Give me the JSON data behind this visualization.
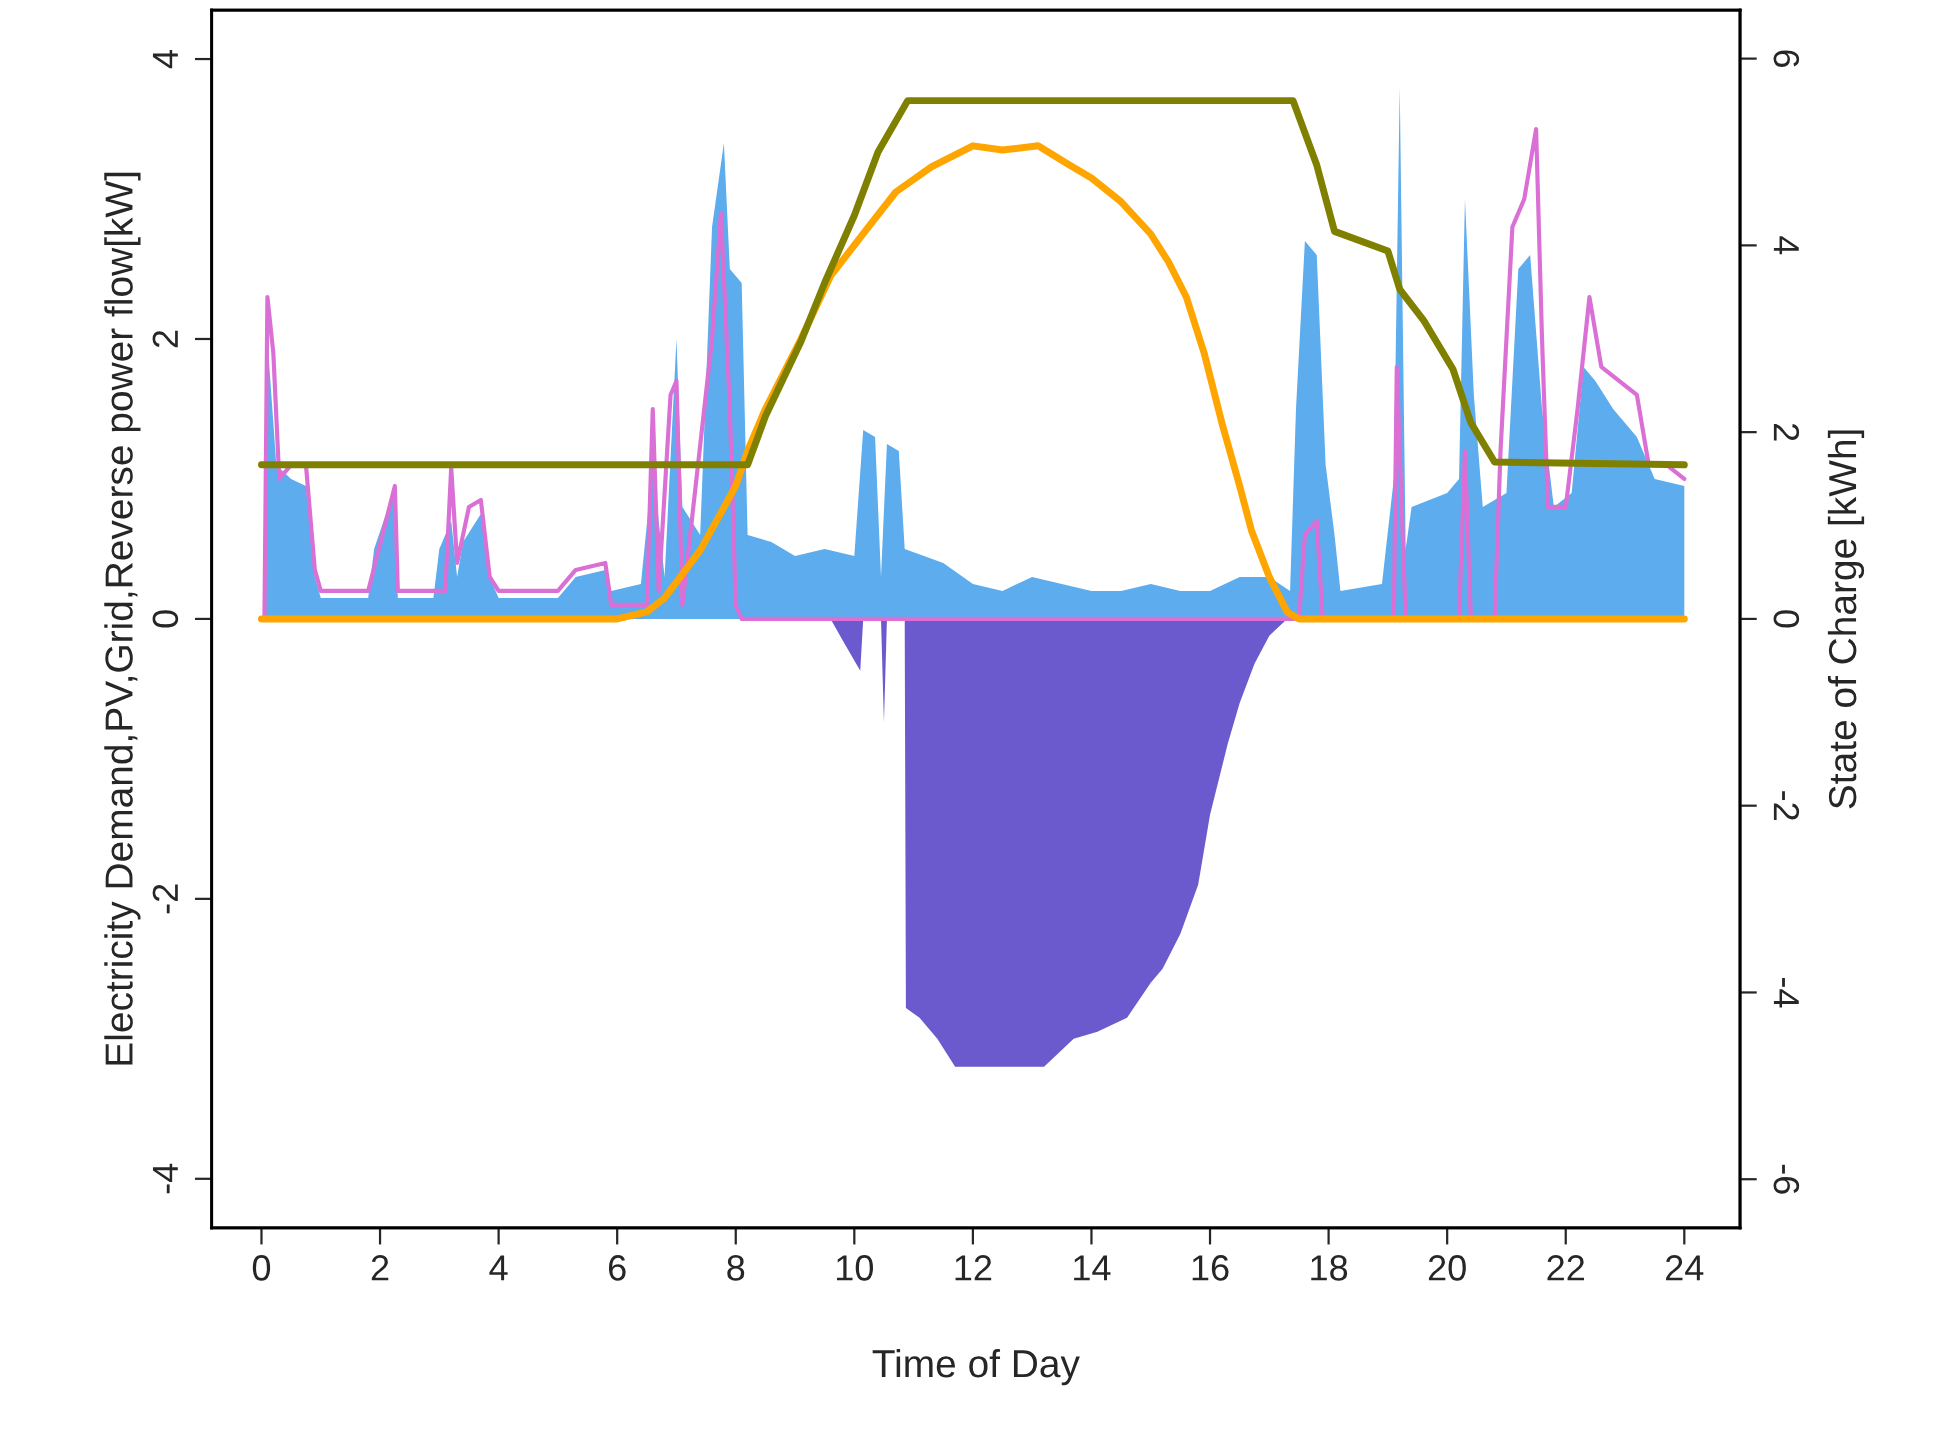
{
  "chart_data": {
    "type": "area",
    "xlabel": "Time of Day",
    "ylabel": "Electricity Demand,PV,Grid,Reverse power flow[kW]",
    "y2label": "State of Charge [kWh]",
    "xlim": [
      -0.84,
      24.94
    ],
    "xticks": [
      0,
      2,
      4,
      6,
      8,
      10,
      12,
      14,
      16,
      18,
      20,
      22,
      24
    ],
    "ylim": [
      -4.35,
      4.35
    ],
    "yticks": [
      -4,
      -2,
      0,
      2,
      4
    ],
    "y2lim": [
      -6.52,
      6.52
    ],
    "y2ticks": [
      -6,
      -4,
      -2,
      0,
      2,
      4,
      6
    ],
    "grid": false,
    "legend": false,
    "series": [
      {
        "color": "#5cacee",
        "x": [
          0.05,
          0.1,
          0.25,
          0.5,
          0.75,
          0.9,
          1.0,
          1.5,
          1.8,
          1.9,
          2.1,
          2.25,
          2.3,
          2.9,
          3.0,
          3.2,
          3.3,
          3.4,
          3.7,
          3.85,
          4.0,
          5.0,
          5.3,
          5.8,
          5.9,
          6.4,
          6.6,
          6.8,
          7.0,
          7.1,
          7.4,
          7.6,
          7.8,
          7.9,
          8.1,
          8.2,
          8.6,
          9.0,
          9.5,
          10.0,
          10.15,
          10.35,
          10.45,
          10.55,
          10.75,
          10.85,
          11.5,
          12.0,
          12.5,
          13.0,
          13.5,
          14.0,
          14.5,
          15.0,
          15.5,
          16.0,
          16.5,
          17.0,
          17.35,
          17.45,
          17.6,
          17.8,
          17.95,
          18.1,
          18.2,
          18.9,
          19.1,
          19.2,
          19.3,
          19.4,
          20.0,
          20.2,
          20.3,
          20.45,
          20.6,
          21.0,
          21.2,
          21.4,
          21.6,
          21.8,
          22.1,
          22.3,
          22.5,
          22.8,
          23.2,
          23.5,
          24.0
        ],
        "values": [
          0,
          2.0,
          1.1,
          1.0,
          0.95,
          0.3,
          0.15,
          0.15,
          0.15,
          0.5,
          0.75,
          0.9,
          0.15,
          0.15,
          0.5,
          0.7,
          0.3,
          0.55,
          0.75,
          0.3,
          0.15,
          0.15,
          0.3,
          0.35,
          0.2,
          0.25,
          1.1,
          0.3,
          2.0,
          0.8,
          0.6,
          2.8,
          3.4,
          2.5,
          2.4,
          0.6,
          0.55,
          0.45,
          0.5,
          0.45,
          1.35,
          1.3,
          0.3,
          1.25,
          1.2,
          0.5,
          0.4,
          0.25,
          0.2,
          0.3,
          0.25,
          0.2,
          0.2,
          0.25,
          0.2,
          0.2,
          0.3,
          0.3,
          0.2,
          1.5,
          2.7,
          2.6,
          1.1,
          0.6,
          0.2,
          0.25,
          1.0,
          3.8,
          0.5,
          0.8,
          0.9,
          1.0,
          3.0,
          1.6,
          0.8,
          0.9,
          2.5,
          2.6,
          1.5,
          0.8,
          0.9,
          1.8,
          1.7,
          1.5,
          1.3,
          1.0,
          0.95
        ]
      },
      {
        "type": "line",
        "color": "#da70d6",
        "x": [
          0.05,
          0.1,
          0.2,
          0.3,
          0.5,
          0.75,
          0.9,
          1.0,
          1.8,
          2.25,
          2.3,
          3.1,
          3.2,
          3.3,
          3.5,
          3.7,
          3.85,
          4.0,
          5.0,
          5.3,
          5.8,
          5.9,
          6.5,
          6.6,
          6.7,
          6.9,
          7.0,
          7.1,
          7.6,
          7.75,
          7.9,
          8.0,
          8.1,
          17.5,
          17.6,
          17.8,
          17.9,
          19.1,
          19.15,
          19.3,
          20.2,
          20.3,
          20.4,
          20.8,
          20.9,
          21.1,
          21.3,
          21.5,
          21.6,
          21.7,
          22.0,
          22.2,
          22.4,
          22.6,
          22.9,
          23.2,
          23.4,
          23.7,
          24.0
        ],
        "values": [
          0,
          2.3,
          1.9,
          1.0,
          1.1,
          1.1,
          0.35,
          0.2,
          0.2,
          0.95,
          0.2,
          0.2,
          1.08,
          0.4,
          0.8,
          0.85,
          0.3,
          0.2,
          0.2,
          0.35,
          0.4,
          0.1,
          0.1,
          1.5,
          0.2,
          1.6,
          1.7,
          0.1,
          2.0,
          2.9,
          1.5,
          0.1,
          0,
          0,
          0.6,
          0.7,
          0,
          0,
          1.8,
          0,
          0,
          1.2,
          0,
          0,
          1.2,
          2.8,
          3.0,
          3.5,
          2.0,
          0.8,
          0.8,
          1.5,
          2.3,
          1.8,
          1.7,
          1.6,
          1.1,
          1.1,
          1.0
        ]
      },
      {
        "type": "area",
        "color": "#6a5acd",
        "x": [
          0,
          9.6,
          9.8,
          10.1,
          10.15,
          10.45,
          10.5,
          10.55,
          10.85,
          10.87,
          11.1,
          11.4,
          11.7,
          12.5,
          13.2,
          13.7,
          14.1,
          14.6,
          15.0,
          15.2,
          15.5,
          15.8,
          16.0,
          16.3,
          16.5,
          16.75,
          17.0,
          17.3,
          24.0
        ],
        "values": [
          0,
          0,
          -0.15,
          -0.37,
          0,
          0,
          -0.74,
          0,
          0,
          -2.78,
          -2.85,
          -3.0,
          -3.2,
          -3.2,
          -3.2,
          -3.0,
          -2.95,
          -2.85,
          -2.6,
          -2.5,
          -2.25,
          -1.9,
          -1.4,
          -0.89,
          -0.6,
          -0.32,
          -0.12,
          0,
          0
        ]
      },
      {
        "type": "line",
        "color": "#ffa500",
        "x": [
          0,
          6.0,
          6.5,
          6.8,
          7.4,
          8.0,
          8.2,
          8.5,
          9.1,
          9.6,
          10.2,
          10.7,
          11.3,
          12.0,
          12.5,
          13.1,
          13.6,
          14.0,
          14.5,
          15.0,
          15.3,
          15.6,
          15.9,
          16.2,
          16.5,
          16.7,
          17.0,
          17.3,
          17.5,
          24.0
        ],
        "values": [
          0,
          0,
          0.05,
          0.15,
          0.49,
          0.95,
          1.2,
          1.5,
          2.0,
          2.45,
          2.78,
          3.05,
          3.23,
          3.38,
          3.35,
          3.38,
          3.25,
          3.15,
          2.98,
          2.75,
          2.55,
          2.3,
          1.9,
          1.4,
          0.95,
          0.63,
          0.3,
          0.05,
          0,
          0
        ]
      },
      {
        "type": "line",
        "axis": "y2",
        "color": "#808000",
        "x": [
          0,
          8.2,
          8.5,
          9.1,
          9.5,
          10.0,
          10.4,
          10.9,
          17.4,
          17.8,
          18.1,
          19.0,
          19.2,
          19.6,
          20.1,
          20.4,
          20.8,
          24.0
        ],
        "values": [
          1.65,
          1.65,
          2.17,
          2.97,
          3.6,
          4.32,
          5.0,
          5.55,
          5.55,
          4.86,
          4.15,
          3.94,
          3.53,
          3.2,
          2.67,
          2.1,
          1.68,
          1.65
        ]
      }
    ]
  }
}
